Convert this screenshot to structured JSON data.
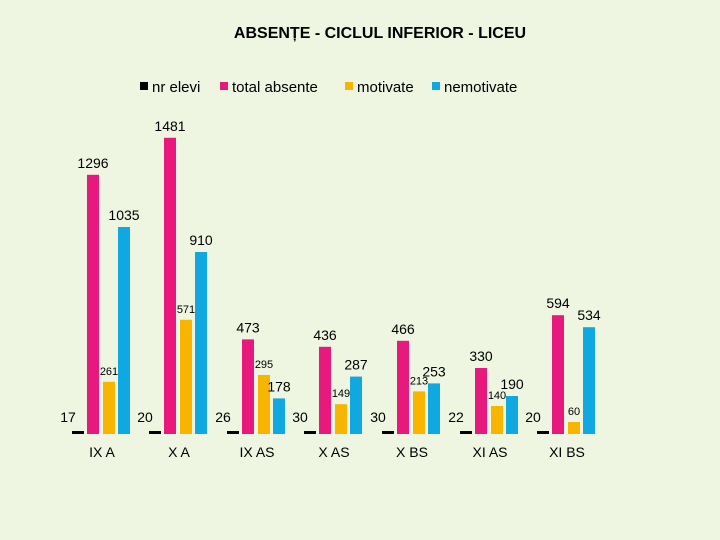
{
  "chart_data": {
    "type": "bar",
    "title": "ABSENȚE - CICLUL INFERIOR - LICEU",
    "xlabel": "",
    "ylabel": "",
    "categories": [
      "IX A",
      "X A",
      "IX AS",
      "X AS",
      "X BS",
      "XI AS",
      "XI BS"
    ],
    "series": [
      {
        "name": "nr elevi",
        "color": "#000000",
        "values": [
          17,
          20,
          26,
          30,
          30,
          22,
          20
        ]
      },
      {
        "name": "total absente",
        "color": "#e8197d",
        "values": [
          1296,
          1481,
          473,
          436,
          466,
          330,
          594
        ]
      },
      {
        "name": "motivate",
        "color": "#f7b500",
        "values": [
          261,
          571,
          295,
          149,
          213,
          140,
          60
        ]
      },
      {
        "name": "nemotivate",
        "color": "#10a8e0",
        "values": [
          1035,
          910,
          178,
          287,
          253,
          190,
          534
        ]
      }
    ],
    "ylim": [
      0,
      1600
    ],
    "grid": false,
    "legend_position": "top"
  }
}
